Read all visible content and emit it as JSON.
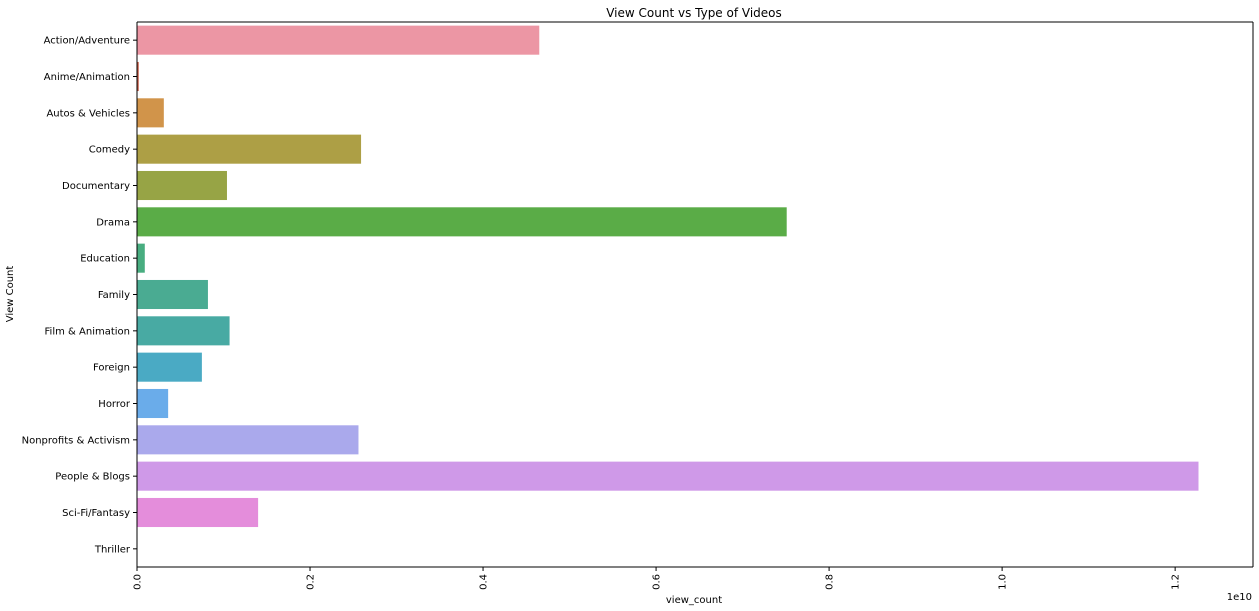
{
  "chart_data": {
    "type": "bar",
    "orientation": "horizontal",
    "title": "View Count vs Type of Videos",
    "xlabel": "view_count",
    "ylabel": "View Count",
    "x_axis_offset_label": "1e10",
    "xlim": [
      0,
      12900000000
    ],
    "x_ticks": [
      0,
      2000000000,
      4000000000,
      6000000000,
      8000000000,
      10000000000,
      12000000000
    ],
    "x_tick_labels": [
      "0.0",
      "0.2",
      "0.4",
      "0.6",
      "0.8",
      "1.0",
      "1.2"
    ],
    "x_tick_rotation": "vertical",
    "grid": false,
    "categories": [
      "Action/Adventure",
      "Anime/Animation",
      "Autos & Vehicles",
      "Comedy",
      "Documentary",
      "Drama",
      "Education",
      "Family",
      "Film & Animation",
      "Foreign",
      "Horror",
      "Nonprofits & Activism",
      "People & Blogs",
      "Sci-Fi/Fantasy",
      "Thriller"
    ],
    "values": [
      4650000000,
      20000000,
      310000000,
      2590000000,
      1040000000,
      7510000000,
      90000000,
      820000000,
      1070000000,
      750000000,
      360000000,
      2560000000,
      12270000000,
      1400000000,
      0
    ],
    "colors": [
      "#ec96a4",
      "#c65a43",
      "#d1944a",
      "#ad9f45",
      "#97a445",
      "#5aac47",
      "#48ad80",
      "#4aab92",
      "#48aaa3",
      "#4aaac4",
      "#6aacea",
      "#aaa9ec",
      "#cf99e8",
      "#e48ddb",
      "#ec8fc1"
    ]
  }
}
